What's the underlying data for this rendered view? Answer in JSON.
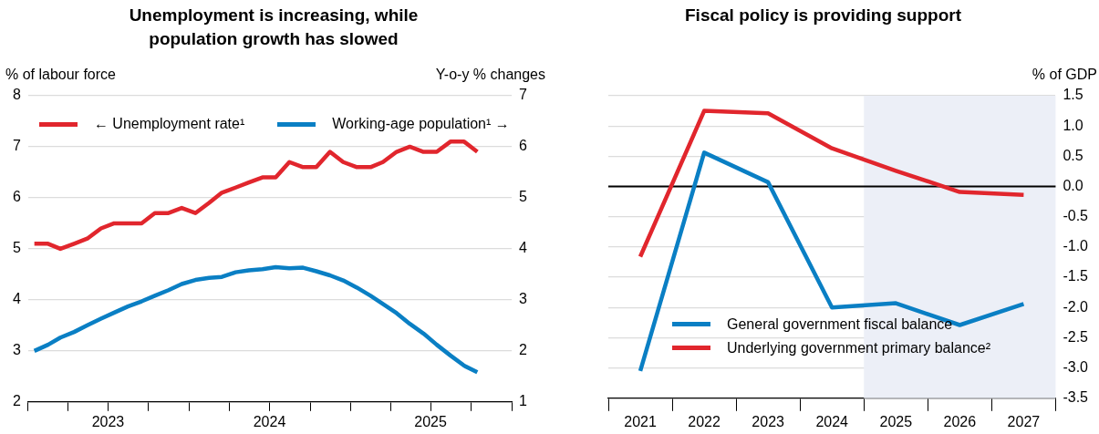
{
  "chart_data": [
    {
      "type": "line",
      "title": "Unemployment is increasing, while population growth has slowed",
      "ylabel": "% of labour force",
      "y2label": "Y-o-y % changes",
      "x": [
        "2023-01-15",
        "2023-02-15",
        "2023-03-15",
        "2023-04-15",
        "2023-05-15",
        "2023-06-15",
        "2023-07-15",
        "2023-08-15",
        "2023-09-15",
        "2023-10-15",
        "2023-11-15",
        "2023-12-15",
        "2024-01-15",
        "2024-02-15",
        "2024-03-15",
        "2024-04-15",
        "2024-05-15",
        "2024-06-15",
        "2024-07-15",
        "2024-08-15",
        "2024-09-15",
        "2024-10-15",
        "2024-11-15",
        "2024-12-15",
        "2025-01-15",
        "2025-02-15",
        "2025-03-15",
        "2025-04-15",
        "2025-05-15",
        "2025-06-15",
        "2025-07-15",
        "2025-08-15",
        "2025-09-15",
        "2025-10-15"
      ],
      "xlim": [
        "2023-01-01",
        "2026-01-01"
      ],
      "xticks": [
        {
          "value": "2023-01-01",
          "label": null
        },
        {
          "value": "2023-04-01",
          "label": null
        },
        {
          "value": "2023-07-01",
          "label": "2023"
        },
        {
          "value": "2023-10-01",
          "label": null
        },
        {
          "value": "2024-01-01",
          "label": null
        },
        {
          "value": "2024-04-01",
          "label": null
        },
        {
          "value": "2024-07-01",
          "label": "2024"
        },
        {
          "value": "2024-10-01",
          "label": null
        },
        {
          "value": "2025-01-01",
          "label": null
        },
        {
          "value": "2025-04-01",
          "label": null
        },
        {
          "value": "2025-07-01",
          "label": "2025"
        },
        {
          "value": "2025-10-01",
          "label": null
        },
        {
          "value": "2026-01-01",
          "label": null
        }
      ],
      "ylim": [
        2,
        8
      ],
      "yticks": [
        2,
        3,
        4,
        5,
        6,
        7,
        8
      ],
      "y2lim": [
        1,
        7
      ],
      "y2ticks": [
        1,
        2,
        3,
        4,
        5,
        6,
        7
      ],
      "grid": "y",
      "legend": "top",
      "series": [
        {
          "name": "← Unemployment rate¹",
          "color": "#e1262d",
          "values": [
            5.1,
            5.1,
            5.0,
            5.1,
            5.2,
            5.4,
            5.5,
            5.5,
            5.5,
            5.7,
            5.7,
            5.8,
            5.7,
            5.9,
            6.1,
            6.2,
            6.3,
            6.4,
            6.4,
            6.7,
            6.6,
            6.6,
            6.9,
            6.7,
            6.6,
            6.6,
            6.7,
            6.9,
            7.0,
            6.9,
            6.9,
            7.1,
            7.1,
            6.9
          ]
        },
        {
          "name": "Working-age population¹ →",
          "color": "#0a7fc4",
          "axis": "y2",
          "values": [
            2.0,
            2.12,
            2.26,
            2.37,
            2.5,
            2.63,
            2.75,
            2.87,
            2.97,
            3.08,
            3.19,
            3.31,
            3.39,
            3.43,
            3.45,
            3.54,
            3.58,
            3.6,
            3.64,
            3.62,
            3.63,
            3.56,
            3.48,
            3.38,
            3.24,
            3.08,
            2.92,
            2.74,
            2.53,
            2.34,
            2.12,
            1.91,
            1.71,
            1.58
          ]
        }
      ]
    },
    {
      "type": "line",
      "title": "Fiscal policy is providing support",
      "ylabel": "% of GDP",
      "categories": [
        "2021",
        "2022",
        "2023",
        "2024",
        "2025",
        "2026",
        "2027"
      ],
      "ylim": [
        -3.5,
        1.5
      ],
      "yticks": [
        {
          "value": -3.5,
          "label": "-3.5"
        },
        {
          "value": -3,
          "label": "-3.0"
        },
        {
          "value": -2.5,
          "label": "-2.5"
        },
        {
          "value": -2,
          "label": "-2.0"
        },
        {
          "value": -1.5,
          "label": "-1.5"
        },
        {
          "value": -1,
          "label": "-1.0"
        },
        {
          "value": -0.5,
          "label": "-0.5"
        },
        {
          "value": 0,
          "label": "0.0"
        },
        {
          "value": 0.5,
          "label": "0.5"
        },
        {
          "value": 1,
          "label": "1.0"
        },
        {
          "value": 1.5,
          "label": "1.5"
        }
      ],
      "grid": "y",
      "legend": "bottom",
      "ref_lines": [
        {
          "axis": "y",
          "value": 0,
          "color": "#000000"
        }
      ],
      "bands": [
        {
          "axis": "x",
          "from": "2025",
          "to": "2027",
          "color": "#eceff7"
        }
      ],
      "series": [
        {
          "name": "General government fiscal balance",
          "color": "#0a7fc4",
          "values": [
            -3.05,
            0.56,
            0.07,
            -2.0,
            -1.93,
            -2.29,
            -1.94
          ]
        },
        {
          "name": "Underlying government primary balance²",
          "color": "#e1262d",
          "values": [
            -1.16,
            1.25,
            1.21,
            0.63,
            0.26,
            -0.09,
            -0.14
          ]
        }
      ]
    }
  ]
}
